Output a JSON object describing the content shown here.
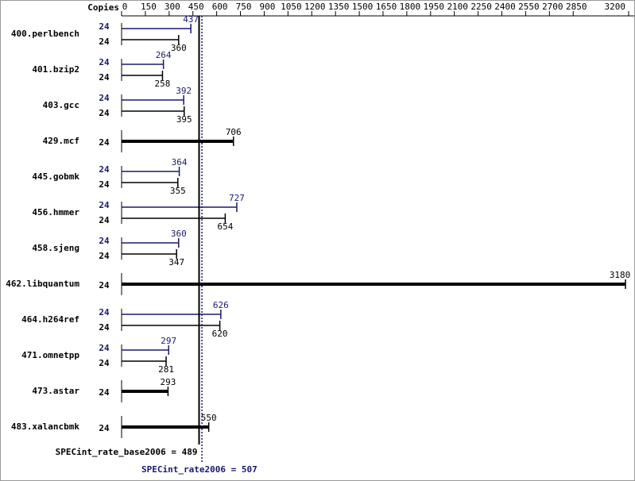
{
  "chart_data": {
    "type": "bar",
    "copies_label": "Copies",
    "categories": [
      "400.perlbench",
      "401.bzip2",
      "403.gcc",
      "429.mcf",
      "445.gobmk",
      "456.hmmer",
      "458.sjeng",
      "462.libquantum",
      "464.h264ref",
      "471.omnetpp",
      "473.astar",
      "483.xalancbmk"
    ],
    "series": [
      {
        "color": "#191970",
        "copies": [
          24,
          24,
          24,
          null,
          24,
          24,
          24,
          null,
          24,
          24,
          null,
          null
        ],
        "values": [
          437,
          264,
          392,
          null,
          364,
          727,
          360,
          null,
          626,
          297,
          null,
          null
        ]
      },
      {
        "color": "#000000",
        "copies": [
          24,
          24,
          24,
          24,
          24,
          24,
          24,
          24,
          24,
          24,
          24,
          24
        ],
        "values": [
          360,
          258,
          395,
          706,
          355,
          654,
          347,
          3180,
          620,
          281,
          293,
          550
        ]
      }
    ],
    "xlim": [
      0,
      3200
    ],
    "xticks": [
      0,
      150,
      300,
      450,
      600,
      750,
      900,
      1050,
      1200,
      1350,
      1500,
      1650,
      1800,
      1950,
      2100,
      2250,
      2400,
      2550,
      2700,
      2850,
      3200
    ],
    "reference_lines": [
      {
        "label": "SPECint_rate_base2006 = 489",
        "value": 489,
        "color": "#000000",
        "dotted": false
      },
      {
        "label": "SPECint_rate2006 = 507",
        "value": 507,
        "color": "#191970",
        "dotted": true
      }
    ]
  }
}
